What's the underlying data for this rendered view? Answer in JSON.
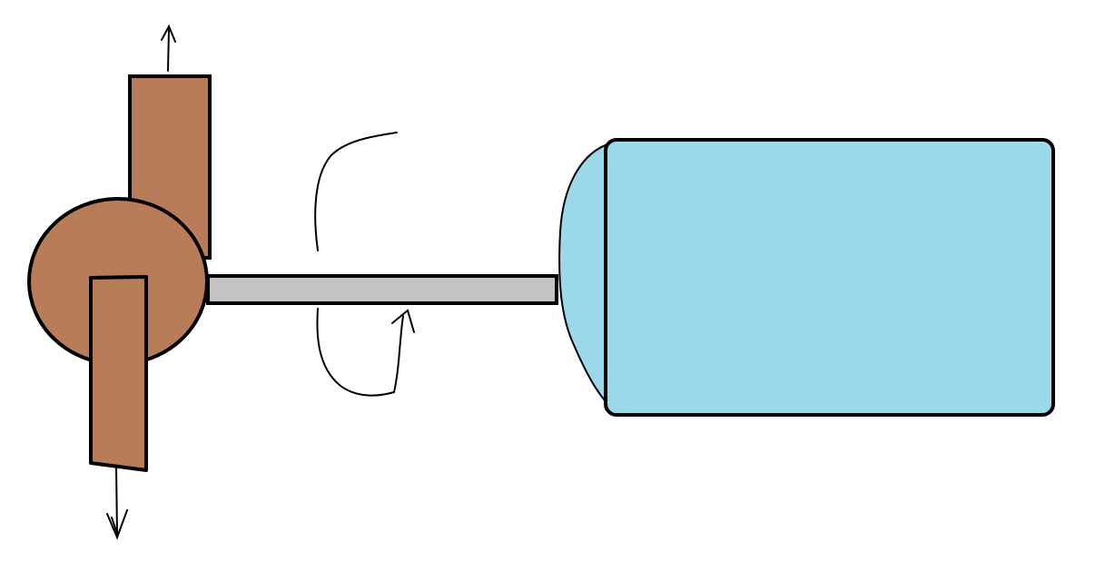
{
  "diagram": {
    "colors": {
      "background": "#ffffff",
      "outline": "#000000",
      "pump_body": "#b97c59",
      "shaft": "#c3c3c3",
      "motor": "#9bd8e9"
    },
    "components": [
      {
        "id": "pump",
        "shape": "volute-with-ports"
      },
      {
        "id": "shaft",
        "shape": "bar"
      },
      {
        "id": "motor",
        "shape": "rounded-rectangle"
      }
    ],
    "arrows": [
      {
        "id": "outlet-flow",
        "direction": "up"
      },
      {
        "id": "inlet-flow",
        "direction": "down"
      },
      {
        "id": "shaft-rotation",
        "direction": "rotational"
      }
    ]
  }
}
